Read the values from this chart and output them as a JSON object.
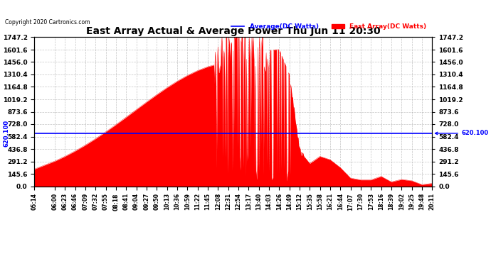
{
  "title": "East Array Actual & Average Power Thu Jun 11 20:30",
  "copyright": "Copyright 2020 Cartronics.com",
  "avg_label": "Average(DC Watts)",
  "east_label": "East Array(DC Watts)",
  "avg_color": "blue",
  "east_color": "red",
  "avg_value": 620.1,
  "ymax": 1747.2,
  "ymin": 0.0,
  "yticks": [
    0.0,
    145.6,
    291.2,
    436.8,
    582.4,
    728.0,
    873.6,
    1019.2,
    1164.8,
    1310.4,
    1456.0,
    1601.6,
    1747.2
  ],
  "background_color": "#ffffff",
  "grid_color": "#aaaaaa",
  "time_labels": [
    "05:14",
    "06:00",
    "06:23",
    "06:46",
    "07:09",
    "07:32",
    "07:55",
    "08:18",
    "08:41",
    "09:04",
    "09:27",
    "09:50",
    "10:13",
    "10:36",
    "10:59",
    "11:22",
    "11:45",
    "12:08",
    "12:31",
    "12:54",
    "13:17",
    "13:40",
    "14:03",
    "14:26",
    "14:49",
    "15:12",
    "15:35",
    "15:58",
    "16:21",
    "16:44",
    "17:07",
    "17:30",
    "17:53",
    "18:16",
    "18:39",
    "19:02",
    "19:25",
    "19:48",
    "20:11"
  ]
}
